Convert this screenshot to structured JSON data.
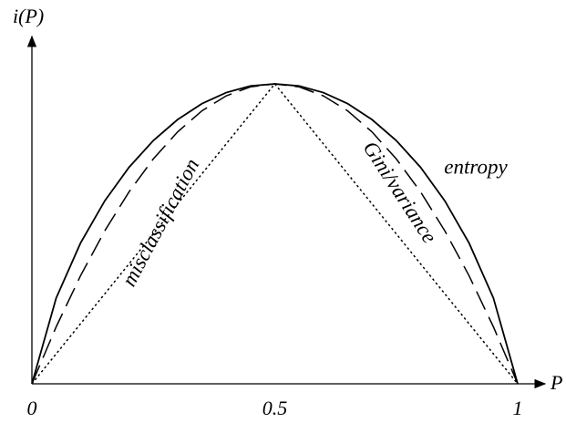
{
  "chart_data": {
    "type": "line",
    "xlabel": "P",
    "ylabel": "i(P)",
    "x": [
      0,
      0.05,
      0.1,
      0.15,
      0.2,
      0.25,
      0.3,
      0.35,
      0.4,
      0.45,
      0.5,
      0.55,
      0.6,
      0.65,
      0.7,
      0.75,
      0.8,
      0.85,
      0.9,
      0.95,
      1
    ],
    "series": [
      {
        "name": "entropy",
        "color": "#000000",
        "dash": "solid",
        "values": [
          0,
          0.286,
          0.469,
          0.61,
          0.722,
          0.811,
          0.881,
          0.934,
          0.971,
          0.993,
          1,
          0.993,
          0.971,
          0.934,
          0.881,
          0.811,
          0.722,
          0.61,
          0.469,
          0.286,
          0
        ]
      },
      {
        "name": "Gini/variance",
        "color": "#000000",
        "dash": "dashed",
        "values": [
          0,
          0.19,
          0.36,
          0.51,
          0.64,
          0.75,
          0.84,
          0.91,
          0.96,
          0.99,
          1,
          0.99,
          0.96,
          0.91,
          0.84,
          0.75,
          0.64,
          0.51,
          0.36,
          0.19,
          0
        ]
      },
      {
        "name": "misclassification",
        "color": "#000000",
        "dash": "dotted",
        "values": [
          0,
          0.1,
          0.2,
          0.3,
          0.4,
          0.5,
          0.6,
          0.7,
          0.8,
          0.9,
          1,
          0.9,
          0.8,
          0.7,
          0.6,
          0.5,
          0.4,
          0.3,
          0.2,
          0.1,
          0
        ]
      }
    ],
    "xlim": [
      0,
      1.06
    ],
    "ylim": [
      0,
      1.14
    ],
    "xticks": [
      0,
      0.5,
      1
    ]
  }
}
